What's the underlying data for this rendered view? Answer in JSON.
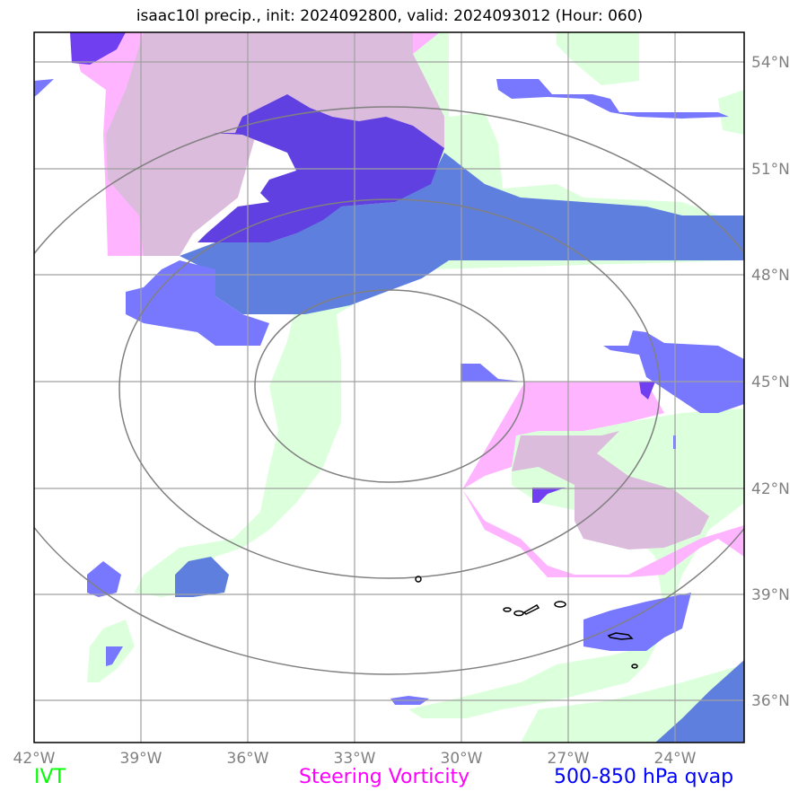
{
  "title": "isaac10l precip., init: 2024092800, valid: 2024093012 (Hour: 060)",
  "map": {
    "lon_ticks": [
      "42°W",
      "39°W",
      "36°W",
      "33°W",
      "30°W",
      "27°W",
      "24°W"
    ],
    "lat_ticks": [
      "54°N",
      "51°N",
      "48°N",
      "45°N",
      "42°N",
      "39°N",
      "36°N"
    ],
    "extent": {
      "lon_min": -42,
      "lon_max": -22,
      "lat_min": 35,
      "lat_max": 55
    },
    "range_ring_center": {
      "lon": -32,
      "lat": 45
    }
  },
  "legend": {
    "ivt": {
      "label": "IVT",
      "color": "#00ff00"
    },
    "vorticity": {
      "label": "Steering Vorticity",
      "color": "#ff00ff"
    },
    "qvap": {
      "label": "500-850 hPa qvap",
      "color": "#0000ff"
    }
  },
  "colors": {
    "ivt_fill": "#dcffdc",
    "vorticity_fill": "#ffb4ff",
    "qvap_fill": "#7878ff",
    "overlap_vort_ivt": "#dcbcdc",
    "overlap_qvap_ivt": "#5f7fdf",
    "overlap_qvap_vort": "#6040e0",
    "grid": "#a0a0a0",
    "rings": "#808080"
  }
}
